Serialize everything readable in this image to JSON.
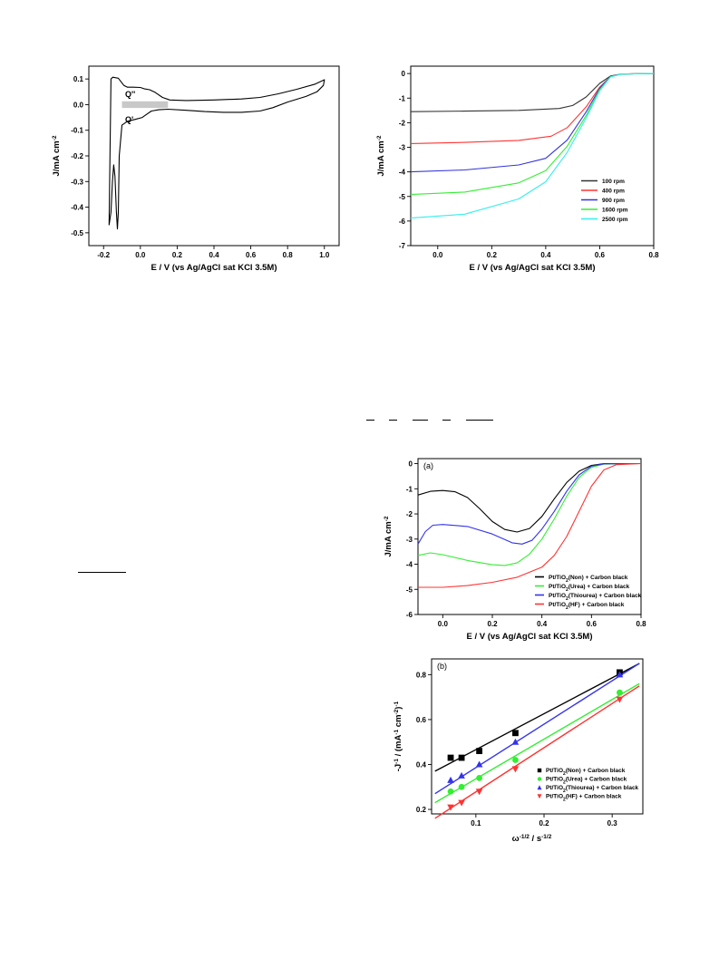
{
  "chart_data": [
    {
      "id": "cv",
      "type": "line",
      "xlabel": "E / V (vs Ag/AgCl sat KCl 3.5M)",
      "ylabel": "J/mA cm-2",
      "xlim": [
        -0.28,
        1.08
      ],
      "ylim": [
        -0.55,
        0.15
      ],
      "xticks": [
        -0.2,
        0.0,
        0.2,
        0.4,
        0.6,
        0.8,
        1.0
      ],
      "yticks": [
        0.1,
        0.0,
        -0.1,
        -0.2,
        -0.3,
        -0.4,
        -0.5
      ],
      "annotations": [
        "Q''",
        "Q'"
      ],
      "shaded_region": {
        "x": [
          -0.1,
          0.15
        ],
        "y": [
          -0.013,
          0.013
        ]
      },
      "series": [
        {
          "color": "#000000",
          "points": [
            [
              -0.17,
              -0.47
            ],
            [
              -0.165,
              -0.2
            ],
            [
              -0.16,
              0.1
            ],
            [
              -0.15,
              0.107
            ],
            [
              -0.12,
              0.103
            ],
            [
              -0.09,
              0.075
            ],
            [
              -0.07,
              0.068
            ],
            [
              -0.04,
              0.068
            ],
            [
              0.0,
              0.067
            ],
            [
              0.02,
              0.062
            ],
            [
              0.05,
              0.058
            ],
            [
              0.08,
              0.048
            ],
            [
              0.12,
              0.028
            ],
            [
              0.16,
              0.018
            ],
            [
              0.25,
              0.016
            ],
            [
              0.4,
              0.018
            ],
            [
              0.55,
              0.022
            ],
            [
              0.65,
              0.028
            ],
            [
              0.75,
              0.042
            ],
            [
              0.85,
              0.06
            ],
            [
              0.95,
              0.08
            ],
            [
              1.0,
              0.097
            ],
            [
              0.995,
              0.075
            ],
            [
              0.96,
              0.05
            ],
            [
              0.9,
              0.032
            ],
            [
              0.8,
              0.01
            ],
            [
              0.72,
              -0.012
            ],
            [
              0.65,
              -0.025
            ],
            [
              0.55,
              -0.03
            ],
            [
              0.45,
              -0.03
            ],
            [
              0.35,
              -0.027
            ],
            [
              0.25,
              -0.022
            ],
            [
              0.15,
              -0.018
            ],
            [
              0.1,
              -0.02
            ],
            [
              0.06,
              -0.025
            ],
            [
              0.03,
              -0.04
            ],
            [
              0.01,
              -0.05
            ],
            [
              -0.03,
              -0.058
            ],
            [
              -0.07,
              -0.065
            ],
            [
              -0.1,
              -0.08
            ],
            [
              -0.115,
              -0.2
            ],
            [
              -0.12,
              -0.42
            ],
            [
              -0.125,
              -0.485
            ],
            [
              -0.13,
              -0.42
            ],
            [
              -0.138,
              -0.28
            ],
            [
              -0.145,
              -0.235
            ],
            [
              -0.152,
              -0.3
            ],
            [
              -0.16,
              -0.42
            ],
            [
              -0.17,
              -0.47
            ]
          ]
        }
      ]
    },
    {
      "id": "rde",
      "type": "line",
      "xlabel": "E / V (vs Ag/AgCl sat KCl 3.5M)",
      "ylabel": "J/mA cm-2",
      "xlim": [
        -0.1,
        0.8
      ],
      "ylim": [
        -7,
        0.3
      ],
      "xticks": [
        0.0,
        0.2,
        0.4,
        0.6,
        0.8
      ],
      "yticks": [
        0,
        -1,
        -2,
        -3,
        -4,
        -5,
        -6,
        -7
      ],
      "legend_position": "bottom-right",
      "series": [
        {
          "name": "100 rpm",
          "color": "#333333",
          "points": [
            [
              -0.1,
              -1.55
            ],
            [
              0.1,
              -1.53
            ],
            [
              0.3,
              -1.5
            ],
            [
              0.45,
              -1.42
            ],
            [
              0.5,
              -1.3
            ],
            [
              0.55,
              -0.95
            ],
            [
              0.6,
              -0.4
            ],
            [
              0.64,
              -0.1
            ],
            [
              0.68,
              -0.02
            ],
            [
              0.8,
              0.0
            ]
          ]
        },
        {
          "name": "400 rpm",
          "color": "#ff3333",
          "points": [
            [
              -0.1,
              -2.85
            ],
            [
              0.1,
              -2.8
            ],
            [
              0.3,
              -2.72
            ],
            [
              0.42,
              -2.55
            ],
            [
              0.48,
              -2.2
            ],
            [
              0.55,
              -1.35
            ],
            [
              0.6,
              -0.55
            ],
            [
              0.64,
              -0.12
            ],
            [
              0.68,
              -0.02
            ],
            [
              0.8,
              0.0
            ]
          ]
        },
        {
          "name": "900 rpm",
          "color": "#3333dd",
          "points": [
            [
              -0.1,
              -4.0
            ],
            [
              0.1,
              -3.92
            ],
            [
              0.3,
              -3.72
            ],
            [
              0.4,
              -3.45
            ],
            [
              0.48,
              -2.7
            ],
            [
              0.55,
              -1.55
            ],
            [
              0.6,
              -0.6
            ],
            [
              0.64,
              -0.12
            ],
            [
              0.68,
              -0.02
            ],
            [
              0.8,
              0.0
            ]
          ]
        },
        {
          "name": "1600 rpm",
          "color": "#33ee33",
          "points": [
            [
              -0.1,
              -4.92
            ],
            [
              0.1,
              -4.82
            ],
            [
              0.3,
              -4.45
            ],
            [
              0.4,
              -3.95
            ],
            [
              0.48,
              -2.95
            ],
            [
              0.55,
              -1.7
            ],
            [
              0.6,
              -0.65
            ],
            [
              0.64,
              -0.13
            ],
            [
              0.68,
              -0.02
            ],
            [
              0.8,
              0.0
            ]
          ]
        },
        {
          "name": "2500 rpm",
          "color": "#33eeee",
          "points": [
            [
              -0.1,
              -5.88
            ],
            [
              0.1,
              -5.72
            ],
            [
              0.3,
              -5.1
            ],
            [
              0.4,
              -4.4
            ],
            [
              0.48,
              -3.2
            ],
            [
              0.55,
              -1.8
            ],
            [
              0.6,
              -0.7
            ],
            [
              0.64,
              -0.14
            ],
            [
              0.68,
              -0.02
            ],
            [
              0.8,
              0.0
            ]
          ]
        }
      ]
    },
    {
      "id": "lsv",
      "type": "line",
      "panel_label": "(a)",
      "xlabel": "E / V (vs Ag/AgCl sat KCl 3.5M)",
      "ylabel": "J/mA cm-2",
      "xlim": [
        -0.1,
        0.8
      ],
      "ylim": [
        -6,
        0.2
      ],
      "xticks": [
        0.0,
        0.2,
        0.4,
        0.6,
        0.8
      ],
      "yticks": [
        0,
        -1,
        -2,
        -3,
        -4,
        -5,
        -6
      ],
      "legend_position": "bottom-right",
      "series": [
        {
          "name": "Pt/TiO2(Non) + Carbon black",
          "color": "#000000",
          "points": [
            [
              -0.1,
              -1.25
            ],
            [
              -0.05,
              -1.1
            ],
            [
              0.0,
              -1.07
            ],
            [
              0.05,
              -1.12
            ],
            [
              0.1,
              -1.35
            ],
            [
              0.15,
              -1.8
            ],
            [
              0.2,
              -2.3
            ],
            [
              0.25,
              -2.62
            ],
            [
              0.3,
              -2.72
            ],
            [
              0.35,
              -2.58
            ],
            [
              0.4,
              -2.1
            ],
            [
              0.45,
              -1.4
            ],
            [
              0.5,
              -0.75
            ],
            [
              0.55,
              -0.3
            ],
            [
              0.6,
              -0.07
            ],
            [
              0.65,
              0.0
            ],
            [
              0.8,
              0.0
            ]
          ]
        },
        {
          "name": "Pt/TiO2(Urea) + Carbon black",
          "color": "#33ee33",
          "points": [
            [
              -0.1,
              -3.65
            ],
            [
              -0.05,
              -3.55
            ],
            [
              0.0,
              -3.62
            ],
            [
              0.1,
              -3.85
            ],
            [
              0.2,
              -4.02
            ],
            [
              0.25,
              -4.05
            ],
            [
              0.3,
              -3.95
            ],
            [
              0.35,
              -3.6
            ],
            [
              0.4,
              -3.0
            ],
            [
              0.45,
              -2.2
            ],
            [
              0.5,
              -1.3
            ],
            [
              0.55,
              -0.55
            ],
            [
              0.6,
              -0.15
            ],
            [
              0.65,
              -0.02
            ],
            [
              0.8,
              0.0
            ]
          ]
        },
        {
          "name": "Pt/TiO2(Thiourea) + Carbon black",
          "color": "#3333ee",
          "points": [
            [
              -0.1,
              -3.2
            ],
            [
              -0.07,
              -2.7
            ],
            [
              -0.04,
              -2.45
            ],
            [
              0.0,
              -2.42
            ],
            [
              0.1,
              -2.5
            ],
            [
              0.2,
              -2.8
            ],
            [
              0.28,
              -3.15
            ],
            [
              0.32,
              -3.2
            ],
            [
              0.36,
              -3.05
            ],
            [
              0.4,
              -2.6
            ],
            [
              0.45,
              -1.9
            ],
            [
              0.5,
              -1.1
            ],
            [
              0.55,
              -0.45
            ],
            [
              0.6,
              -0.1
            ],
            [
              0.65,
              -0.01
            ],
            [
              0.8,
              0.0
            ]
          ]
        },
        {
          "name": "Pt/TiO2(HF) + Carbon black",
          "color": "#ff3333",
          "points": [
            [
              -0.1,
              -4.92
            ],
            [
              0.0,
              -4.92
            ],
            [
              0.1,
              -4.85
            ],
            [
              0.2,
              -4.72
            ],
            [
              0.3,
              -4.52
            ],
            [
              0.4,
              -4.12
            ],
            [
              0.45,
              -3.65
            ],
            [
              0.5,
              -2.9
            ],
            [
              0.55,
              -1.9
            ],
            [
              0.6,
              -0.9
            ],
            [
              0.65,
              -0.25
            ],
            [
              0.7,
              -0.04
            ],
            [
              0.8,
              0.0
            ]
          ]
        }
      ]
    },
    {
      "id": "kl",
      "type": "scatter",
      "panel_label": "(b)",
      "xlabel": "ω-1/2 / s-1/2",
      "ylabel": "-J-1 / (mA-1 cm-2)-1",
      "xlim": [
        0.035,
        0.345
      ],
      "ylim": [
        0.18,
        0.87
      ],
      "xticks": [
        0.1,
        0.2,
        0.3
      ],
      "yticks": [
        0.2,
        0.4,
        0.6,
        0.8
      ],
      "legend_position": "bottom-right",
      "x": [
        0.063,
        0.079,
        0.105,
        0.158,
        0.311
      ],
      "series": [
        {
          "name": "Pt/TiO2(Non) + Carbon black",
          "color": "#000000",
          "marker": "square",
          "values": [
            0.43,
            0.43,
            0.46,
            0.54,
            0.81
          ],
          "fit": [
            [
              0.04,
              0.37
            ],
            [
              0.34,
              0.85
            ]
          ]
        },
        {
          "name": "Pt/TiO2(Urea) + Carbon black",
          "color": "#33ee33",
          "marker": "circle",
          "values": [
            0.28,
            0.3,
            0.34,
            0.42,
            0.72
          ],
          "fit": [
            [
              0.04,
              0.23
            ],
            [
              0.34,
              0.76
            ]
          ]
        },
        {
          "name": "Pt/TiO2(Thiourea) + Carbon black",
          "color": "#3333ee",
          "marker": "triangle-up",
          "values": [
            0.33,
            0.35,
            0.4,
            0.5,
            0.8
          ],
          "fit": [
            [
              0.04,
              0.27
            ],
            [
              0.34,
              0.85
            ]
          ]
        },
        {
          "name": "Pt/TiO2(HF) + Carbon black",
          "color": "#ff3333",
          "marker": "triangle-down",
          "values": [
            0.21,
            0.23,
            0.28,
            0.38,
            0.69
          ],
          "fit": [
            [
              0.04,
              0.16
            ],
            [
              0.34,
              0.75
            ]
          ]
        }
      ]
    }
  ]
}
